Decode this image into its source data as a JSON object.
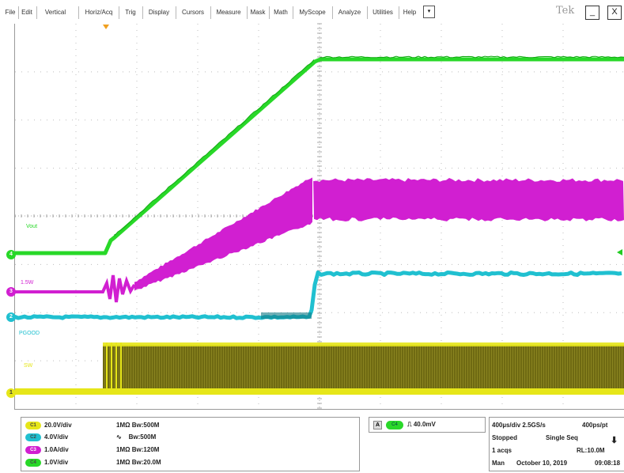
{
  "menu": {
    "items": [
      "File",
      "Edit",
      "Vertical",
      "Horiz/Acq",
      "Trig",
      "Display",
      "Cursors",
      "Measure",
      "Mask",
      "Math",
      "MyScope",
      "Analyze",
      "Utilities",
      "Help"
    ],
    "dropdown_glyph": "▾",
    "brand": "Tek",
    "minimize_glyph": "_",
    "close_glyph": "X"
  },
  "screen": {
    "channel_labels": {
      "vout": "Vout",
      "ch3": "1.5W",
      "ch2": "PGOOD",
      "ch1": "SW"
    },
    "channel_markers": {
      "ch1": "1",
      "ch2": "2",
      "ch3": "3",
      "ch4": "4"
    },
    "colors": {
      "ch1": "#e6e619",
      "ch1_fill": "#6f6a12",
      "ch2": "#20c0d0",
      "ch3": "#d11fd1",
      "ch4": "#28d828",
      "grid": "#bdbdbd",
      "trigger_marker": "#f0a020"
    }
  },
  "channels": [
    {
      "id": "C1",
      "scale": "20.0V/div",
      "impedance": "1MΩ",
      "bandwidth": "Bw:500M",
      "color": "#e6e619"
    },
    {
      "id": "C2",
      "scale": "4.0V/div",
      "impedance": "∿",
      "bandwidth": "Bw:500M",
      "color": "#20c0d0"
    },
    {
      "id": "C3",
      "scale": "1.0A/div",
      "impedance": "1MΩ",
      "bandwidth": "Bw:120M",
      "color": "#d11fd1"
    },
    {
      "id": "C4",
      "scale": "1.0V/div",
      "impedance": "1MΩ",
      "bandwidth": "Bw:20.0M",
      "color": "#28d828"
    }
  ],
  "trigger": {
    "source_letter": "A",
    "channel": "C4",
    "slope": "⎍",
    "level": "40.0mV"
  },
  "acquisition": {
    "timebase": "400µs/div",
    "sample_rate": "2.5GS/s",
    "resolution": "400ps/pt",
    "state": "Stopped",
    "mode": "Single Seq",
    "acqs": "1 acqs",
    "record_length": "RL:10.0M",
    "run_mode": "Man",
    "date": "October 10, 2019",
    "time": "09:08:18",
    "run_indicator": "⬇"
  }
}
